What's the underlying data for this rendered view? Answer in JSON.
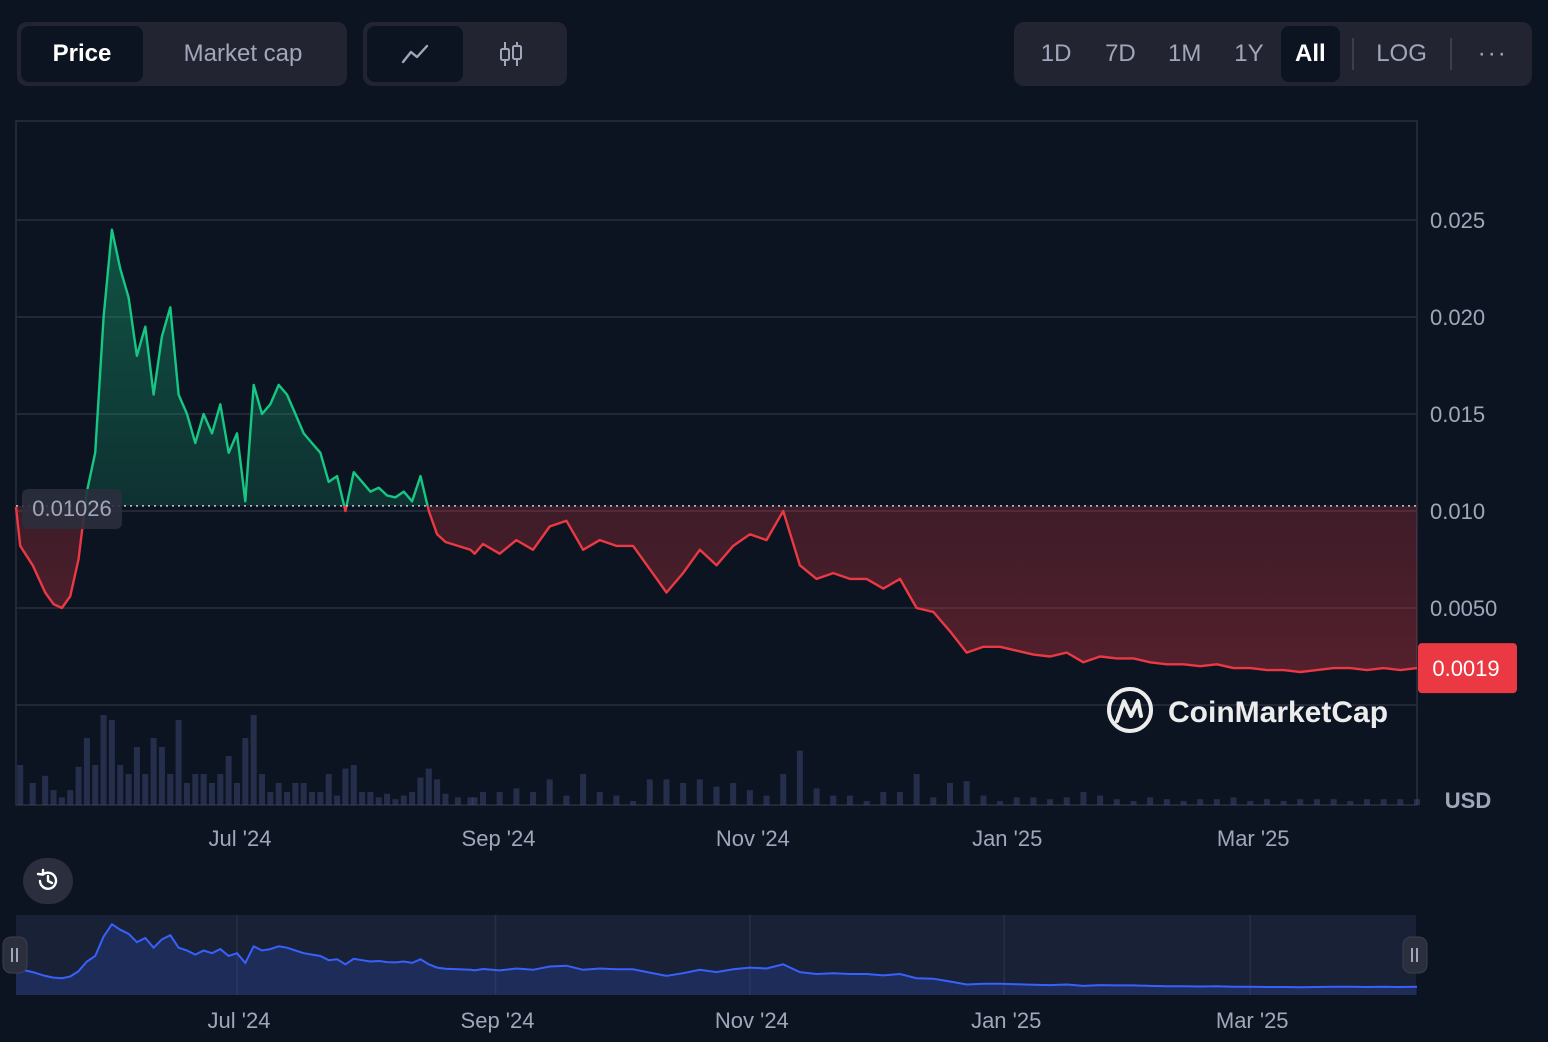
{
  "toolbar": {
    "type_tabs": [
      "Price",
      "Market cap"
    ],
    "active_type": "Price",
    "view_icons": [
      "line-chart-icon",
      "candlestick-icon"
    ],
    "active_view": "line-chart-icon",
    "range_tabs": [
      "1D",
      "7D",
      "1M",
      "1Y",
      "All"
    ],
    "active_range": "All",
    "log_label": "LOG",
    "more_label": "···"
  },
  "colors": {
    "up": "#16c784",
    "down": "#ea3943",
    "navigator": "#3861fb",
    "background": "#0d1421"
  },
  "watermark": "CoinMarketCap",
  "navigator_labels": [
    "Jul '24",
    "Sep '24",
    "Nov '24",
    "Jan '25",
    "Mar '25"
  ],
  "chart_data": {
    "type": "line",
    "title": "",
    "xlabel": "",
    "ylabel": "",
    "unit": "USD",
    "x_tick_labels": [
      "Jul '24",
      "Sep '24",
      "Nov '24",
      "Jan '25",
      "Mar '25"
    ],
    "y_tick_labels": [
      "0.025",
      "0.020",
      "0.015",
      "0.010",
      "0.0050"
    ],
    "y_ticks": [
      0.025,
      0.02,
      0.015,
      0.01,
      0.005
    ],
    "ylim": [
      0.0,
      0.0301
    ],
    "xlim": [
      "2024-05-09",
      "2025-04-10"
    ],
    "reference_price": 0.01026,
    "reference_label": "0.01026",
    "current_price": 0.0019,
    "current_label": "0.0019",
    "grid": true,
    "series": [
      {
        "name": "Price",
        "x": [
          "2024-05-09",
          "2024-05-10",
          "2024-05-13",
          "2024-05-16",
          "2024-05-18",
          "2024-05-20",
          "2024-05-22",
          "2024-05-24",
          "2024-05-26",
          "2024-05-28",
          "2024-05-30",
          "2024-06-01",
          "2024-06-03",
          "2024-06-05",
          "2024-06-07",
          "2024-06-09",
          "2024-06-11",
          "2024-06-13",
          "2024-06-15",
          "2024-06-17",
          "2024-06-19",
          "2024-06-21",
          "2024-06-23",
          "2024-06-25",
          "2024-06-27",
          "2024-06-29",
          "2024-07-01",
          "2024-07-03",
          "2024-07-05",
          "2024-07-07",
          "2024-07-09",
          "2024-07-11",
          "2024-07-13",
          "2024-07-15",
          "2024-07-17",
          "2024-07-19",
          "2024-07-21",
          "2024-07-23",
          "2024-07-25",
          "2024-07-27",
          "2024-07-29",
          "2024-07-31",
          "2024-08-02",
          "2024-08-04",
          "2024-08-06",
          "2024-08-08",
          "2024-08-10",
          "2024-08-12",
          "2024-08-14",
          "2024-08-16",
          "2024-08-18",
          "2024-08-20",
          "2024-08-23",
          "2024-08-26",
          "2024-08-27",
          "2024-08-29",
          "2024-09-02",
          "2024-09-06",
          "2024-09-10",
          "2024-09-14",
          "2024-09-18",
          "2024-09-22",
          "2024-09-26",
          "2024-09-30",
          "2024-10-04",
          "2024-10-08",
          "2024-10-12",
          "2024-10-16",
          "2024-10-20",
          "2024-10-24",
          "2024-10-28",
          "2024-11-01",
          "2024-11-05",
          "2024-11-09",
          "2024-11-13",
          "2024-11-17",
          "2024-11-21",
          "2024-11-25",
          "2024-11-29",
          "2024-12-03",
          "2024-12-07",
          "2024-12-11",
          "2024-12-15",
          "2024-12-19",
          "2024-12-23",
          "2024-12-27",
          "2024-12-31",
          "2025-01-04",
          "2025-01-08",
          "2025-01-12",
          "2025-01-16",
          "2025-01-20",
          "2025-01-24",
          "2025-01-28",
          "2025-02-01",
          "2025-02-05",
          "2025-02-09",
          "2025-02-13",
          "2025-02-17",
          "2025-02-21",
          "2025-02-25",
          "2025-03-01",
          "2025-03-05",
          "2025-03-09",
          "2025-03-13",
          "2025-03-17",
          "2025-03-21",
          "2025-03-25",
          "2025-03-29",
          "2025-04-02",
          "2025-04-06",
          "2025-04-10"
        ],
        "y": [
          0.0102,
          0.0082,
          0.0072,
          0.0058,
          0.0052,
          0.005,
          0.0056,
          0.0075,
          0.011,
          0.013,
          0.02,
          0.0245,
          0.0225,
          0.021,
          0.018,
          0.0195,
          0.016,
          0.019,
          0.0205,
          0.016,
          0.015,
          0.0135,
          0.015,
          0.014,
          0.0155,
          0.013,
          0.014,
          0.0105,
          0.0165,
          0.015,
          0.0155,
          0.0165,
          0.016,
          0.015,
          0.014,
          0.0135,
          0.013,
          0.0115,
          0.0118,
          0.01,
          0.012,
          0.0115,
          0.011,
          0.0112,
          0.0108,
          0.0107,
          0.011,
          0.0105,
          0.0118,
          0.01,
          0.0088,
          0.0084,
          0.0082,
          0.008,
          0.0078,
          0.0083,
          0.0078,
          0.0085,
          0.008,
          0.0092,
          0.0095,
          0.008,
          0.0085,
          0.0082,
          0.0082,
          0.007,
          0.0058,
          0.0068,
          0.008,
          0.0072,
          0.0082,
          0.0088,
          0.0085,
          0.01,
          0.0072,
          0.0065,
          0.0068,
          0.0065,
          0.0065,
          0.006,
          0.0065,
          0.005,
          0.0048,
          0.0038,
          0.0027,
          0.003,
          0.003,
          0.0028,
          0.0026,
          0.0025,
          0.0027,
          0.0022,
          0.0025,
          0.0024,
          0.0024,
          0.0022,
          0.0021,
          0.0021,
          0.002,
          0.0021,
          0.0019,
          0.0019,
          0.0018,
          0.0018,
          0.0017,
          0.0018,
          0.0019,
          0.0019,
          0.0018,
          0.0019,
          0.0018,
          0.0019
        ]
      }
    ]
  }
}
